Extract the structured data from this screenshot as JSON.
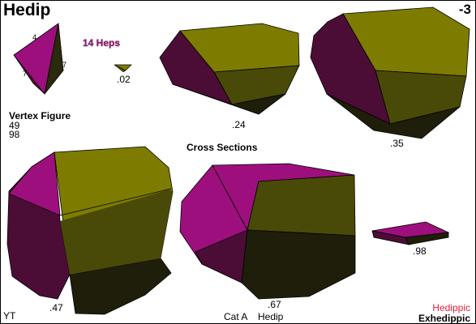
{
  "title": "Hedip",
  "code": "-3",
  "heps_label": "14 Heps",
  "vertex_figure": {
    "heading": "Vertex Figure",
    "value1": "49",
    "value2": "98",
    "edge_labels": [
      "4",
      "7",
      "7"
    ]
  },
  "cross_sections_label": "Cross Sections",
  "sections": [
    ".02",
    ".24",
    ".35",
    ".47",
    ".67",
    ".98"
  ],
  "footer": {
    "left": "YT",
    "category": "Cat A",
    "name": "Hedip"
  },
  "legend": {
    "line1": "Hedippic",
    "line2": "Exhedippic",
    "line1_color": "#e0203a"
  },
  "colors": {
    "magenta": "#9e0f7e",
    "dark_magenta": "#4b0d35",
    "olive": "#7d7c00",
    "dark_olive": "#4a4a08",
    "near_black": "#1e1e0a"
  }
}
